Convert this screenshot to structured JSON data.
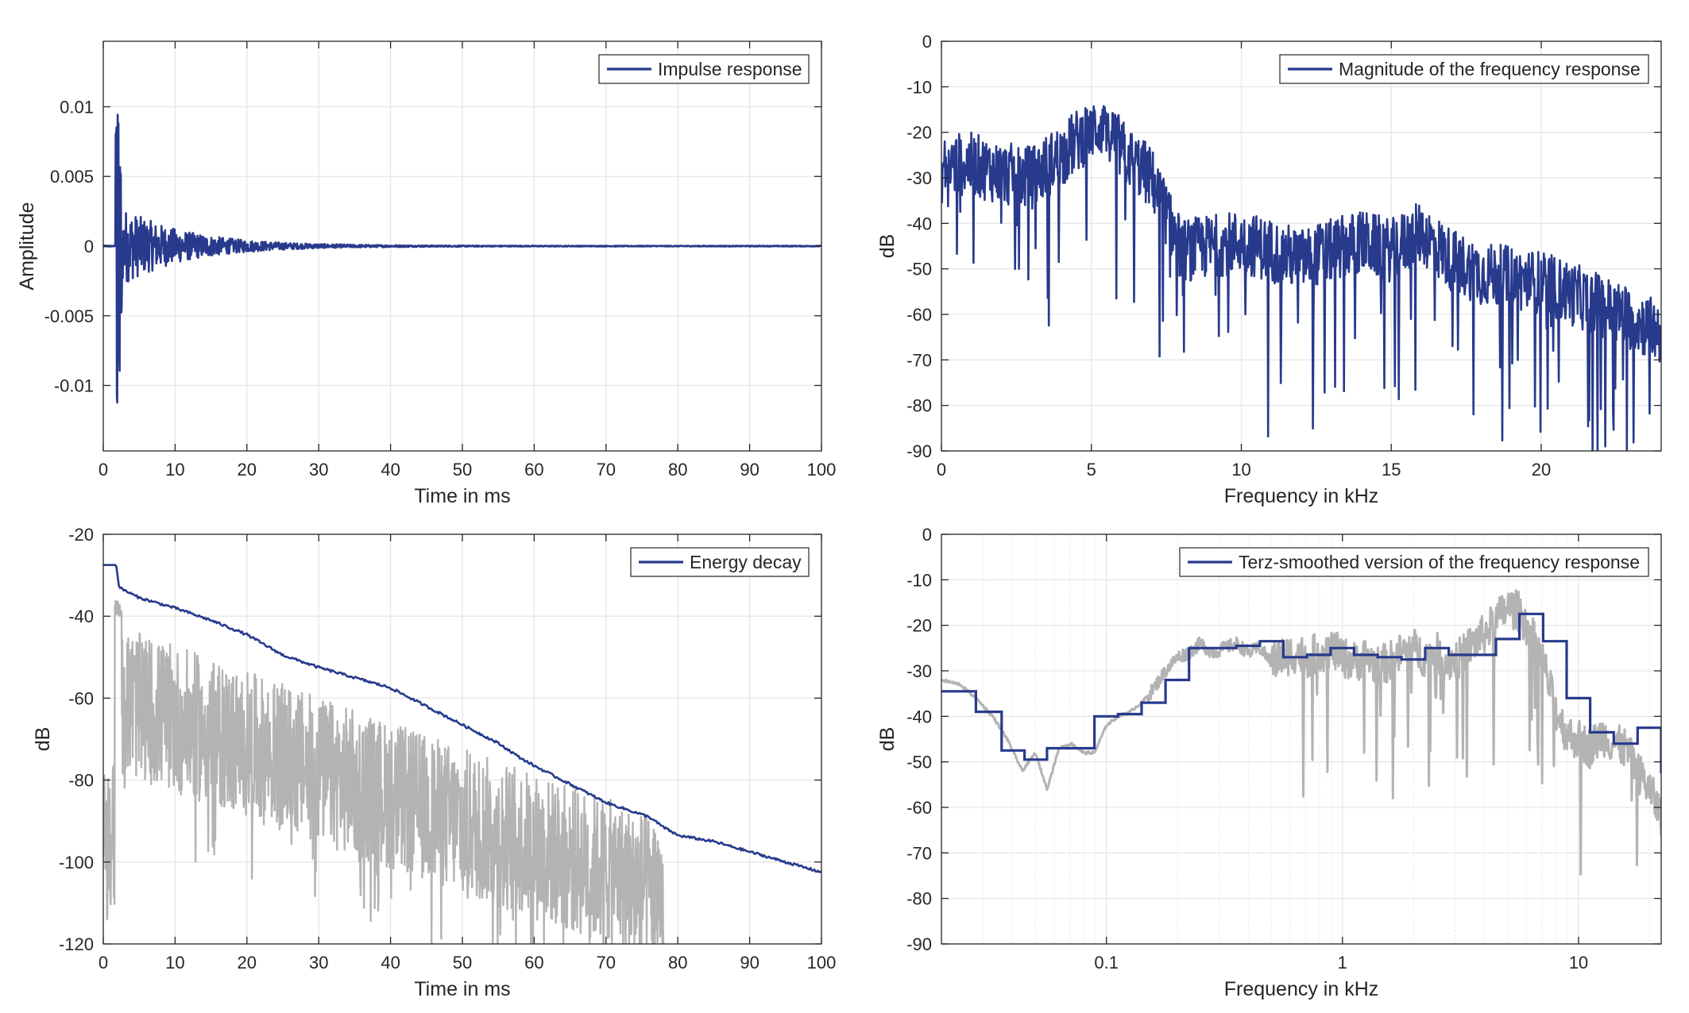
{
  "colors": {
    "series": "#283a8c",
    "gray": "#b3b3b3",
    "grid": "#e6e6e6",
    "axis": "#262626"
  },
  "chart_data": [
    {
      "id": "impulse",
      "type": "line",
      "xlabel": "Time in ms",
      "ylabel": "Amplitude",
      "xlim": [
        0,
        100
      ],
      "ylim": [
        -0.0147,
        0.0147
      ],
      "xticks": [
        0,
        10,
        20,
        30,
        40,
        50,
        60,
        70,
        80,
        90,
        100
      ],
      "xtick_labels": [
        "0",
        "10",
        "20",
        "30",
        "40",
        "50",
        "60",
        "70",
        "80",
        "90",
        "100"
      ],
      "yticks": [
        0.01,
        0.005,
        0,
        -0.005,
        -0.01
      ],
      "ytick_labels": [
        "0.01",
        "0.005",
        "0",
        "-0.005",
        "-0.01"
      ],
      "legend": "Impulse response",
      "legend_position": "top-right",
      "grid": true,
      "series": [
        {
          "name": "Impulse response",
          "description": "direct sound peak about 0.0107 / -0.0132 near 2 ms, decaying oscillation to about 45 ms, then near zero"
        }
      ]
    },
    {
      "id": "magnitude",
      "type": "line",
      "xlabel": "Frequency in kHz",
      "ylabel": "dB",
      "xlim": [
        0,
        24
      ],
      "ylim": [
        -90,
        0
      ],
      "xticks": [
        0,
        5,
        10,
        15,
        20
      ],
      "xtick_labels": [
        "0",
        "5",
        "10",
        "15",
        "20"
      ],
      "yticks": [
        0,
        -10,
        -20,
        -30,
        -40,
        -50,
        -60,
        -70,
        -80,
        -90
      ],
      "ytick_labels": [
        "0",
        "-10",
        "-20",
        "-30",
        "-40",
        "-50",
        "-60",
        "-70",
        "-80",
        "-90"
      ],
      "legend": "Magnitude of the frequency response",
      "legend_position": "top-right",
      "grid": true,
      "envelope": {
        "x": [
          0,
          0.5,
          1,
          2,
          3,
          4,
          5,
          5.5,
          6,
          7,
          7.5,
          8,
          9,
          10,
          12,
          14,
          15,
          16,
          17,
          18,
          20,
          22,
          24
        ],
        "y": [
          -28,
          -27,
          -27,
          -29,
          -30,
          -25,
          -19,
          -18,
          -24,
          -30,
          -38,
          -46,
          -45,
          -44,
          -48,
          -44,
          -46,
          -42,
          -48,
          -51,
          -53,
          -58,
          -64
        ]
      }
    },
    {
      "id": "energy",
      "type": "line",
      "xlabel": "Time in ms",
      "ylabel": "dB",
      "xlim": [
        0,
        100
      ],
      "ylim": [
        -120,
        -20
      ],
      "xticks": [
        0,
        10,
        20,
        30,
        40,
        50,
        60,
        70,
        80,
        90,
        100
      ],
      "xtick_labels": [
        "0",
        "10",
        "20",
        "30",
        "40",
        "50",
        "60",
        "70",
        "80",
        "90",
        "100"
      ],
      "yticks": [
        -20,
        -40,
        -60,
        -80,
        -100,
        -120
      ],
      "ytick_labels": [
        "-20",
        "-40",
        "-60",
        "-80",
        "-100",
        "-120"
      ],
      "legend": "Energy decay",
      "legend_position": "top-right",
      "grid": true,
      "series": [
        {
          "name": "Energy decay",
          "x": [
            0,
            1.8,
            2.2,
            5,
            10,
            15,
            20,
            25,
            30,
            35,
            40,
            45,
            50,
            55,
            58,
            60,
            65,
            70,
            76,
            78,
            80,
            85,
            90,
            95,
            100
          ],
          "y": [
            -27.5,
            -27.5,
            -33,
            -35.5,
            -38,
            -41,
            -44.5,
            -49.5,
            -52.5,
            -55,
            -57.5,
            -62,
            -66.5,
            -71,
            -74.5,
            -76.5,
            -81,
            -85.5,
            -89,
            -91.5,
            -93.5,
            -95,
            -97.5,
            -100,
            -102.5
          ]
        }
      ],
      "gray_trace": {
        "description": "instantaneous energy in gray, peak near -38 dB at 2 ms, decaying to about -120 dB near 77 ms"
      }
    },
    {
      "id": "terz",
      "type": "line",
      "xlabel": "Frequency in kHz",
      "ylabel": "dB",
      "xscale": "log",
      "xlim": [
        0.02,
        22.4
      ],
      "ylim": [
        -90,
        0
      ],
      "xticks": [
        0.1,
        1,
        10
      ],
      "xtick_labels": [
        "0.1",
        "1",
        "10"
      ],
      "yticks": [
        0,
        -10,
        -20,
        -30,
        -40,
        -50,
        -60,
        -70,
        -80,
        -90
      ],
      "ytick_labels": [
        "0",
        "-10",
        "-20",
        "-30",
        "-40",
        "-50",
        "-60",
        "-70",
        "-80",
        "-90"
      ],
      "legend": "Terz-smoothed version of the frequency response",
      "legend_position": "top-right",
      "grid": true,
      "series": [
        {
          "name": "Terz-smoothed version of the frequency response",
          "edges": [
            0.02,
            0.028,
            0.036,
            0.045,
            0.056,
            0.071,
            0.089,
            0.112,
            0.141,
            0.178,
            0.224,
            0.282,
            0.355,
            0.447,
            0.562,
            0.708,
            0.891,
            1.12,
            1.41,
            1.78,
            2.24,
            2.82,
            3.55,
            4.47,
            5.62,
            7.08,
            8.91,
            11.2,
            14.1,
            17.8,
            22.4
          ],
          "levels": [
            -34.5,
            -39,
            -47.5,
            -49.5,
            -47,
            -47,
            -40,
            -39.5,
            -37,
            -32,
            -25,
            -25,
            -24.5,
            -23.5,
            -27,
            -26.5,
            -25,
            -26.5,
            -27,
            -27.5,
            -25,
            -26.5,
            -26.5,
            -23,
            -17.5,
            -23.5,
            -36,
            -43.5,
            -46,
            -42.5,
            -52.5
          ]
        }
      ],
      "gray_trace": {
        "f": [
          0.02,
          0.024,
          0.028,
          0.033,
          0.038,
          0.044,
          0.05,
          0.056,
          0.063,
          0.071,
          0.08,
          0.089,
          0.1,
          0.112,
          0.126,
          0.141,
          0.158,
          0.178,
          0.2,
          0.224,
          0.25,
          0.282,
          0.316,
          0.355,
          0.4,
          0.447,
          0.5,
          0.562,
          0.631,
          0.708,
          0.794,
          0.891,
          1,
          1.12,
          1.26,
          1.41,
          1.58,
          1.78,
          2,
          2.24,
          2.51,
          2.82,
          3.16,
          3.55,
          3.98,
          4.47,
          5.01,
          5.62,
          6.31,
          7.08,
          7.94,
          8.91,
          10,
          11.2,
          12.6,
          14.1,
          15.8,
          17.8,
          20,
          22.4
        ],
        "db": [
          -32,
          -33,
          -36,
          -40,
          -45,
          -52,
          -48,
          -56,
          -47,
          -46,
          -48,
          -48,
          -42,
          -40,
          -39,
          -37,
          -34,
          -30,
          -27,
          -26,
          -24,
          -26,
          -25,
          -24,
          -26,
          -25,
          -28,
          -27,
          -26,
          -27,
          -26,
          -25,
          -27,
          -28,
          -27,
          -29,
          -28,
          -26,
          -25,
          -27,
          -26,
          -28,
          -27,
          -24,
          -22,
          -19,
          -16,
          -17,
          -22,
          -28,
          -38,
          -44,
          -45,
          -47,
          -44,
          -46,
          -47,
          -52,
          -56,
          -62
        ]
      }
    }
  ]
}
